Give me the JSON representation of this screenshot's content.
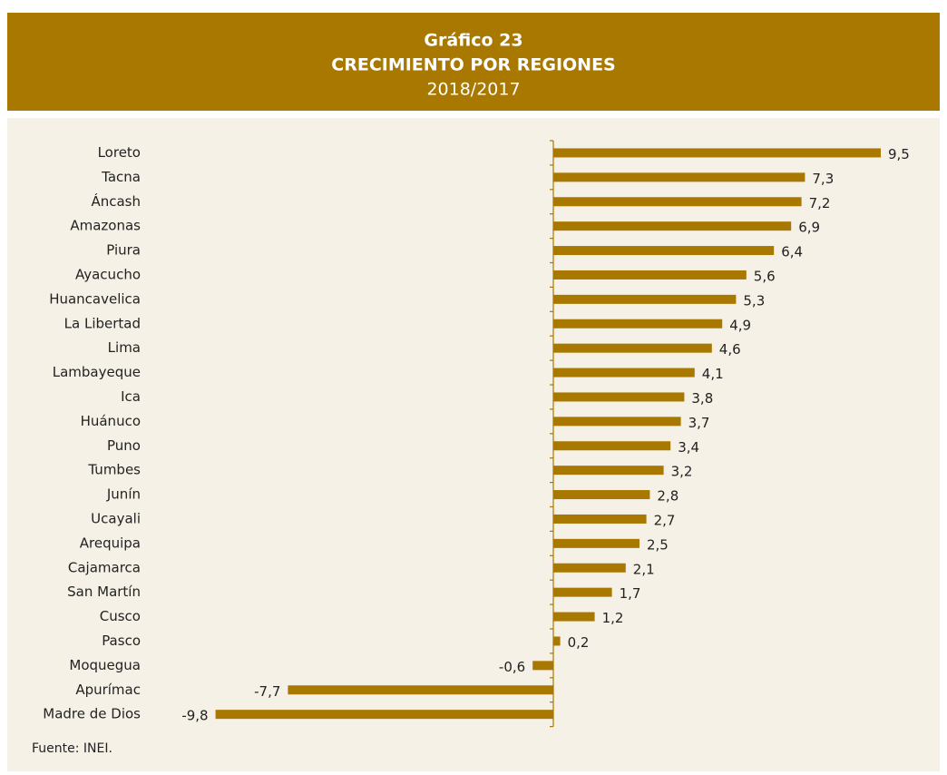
{
  "chart_data": {
    "type": "hbar",
    "title": "Gráfico 23",
    "subtitle": "CRECIMIENTO POR REGIONES",
    "period": "2018/2017",
    "source": "Fuente: INEI.",
    "color": "#a87800",
    "categories": [
      "Loreto",
      "Tacna",
      "Áncash",
      "Amazonas",
      "Piura",
      "Ayacucho",
      "Huancavelica",
      "La Libertad",
      "Lima",
      "Lambayeque",
      "Ica",
      "Huánuco",
      "Puno",
      "Tumbes",
      "Junín",
      "Ucayali",
      "Arequipa",
      "Cajamarca",
      "San Martín",
      "Cusco",
      "Pasco",
      "Moquegua",
      "Apurímac",
      "Madre de Dios"
    ],
    "values": [
      9.5,
      7.3,
      7.2,
      6.9,
      6.4,
      5.6,
      5.3,
      4.9,
      4.6,
      4.1,
      3.8,
      3.7,
      3.4,
      3.2,
      2.8,
      2.7,
      2.5,
      2.1,
      1.7,
      1.2,
      0.2,
      -0.6,
      -7.7,
      -9.8
    ],
    "value_labels": [
      "9,5",
      "7,3",
      "7,2",
      "6,9",
      "6,4",
      "5,6",
      "5,3",
      "4,9",
      "4,6",
      "4,1",
      "3,8",
      "3,7",
      "3,4",
      "3,2",
      "2,8",
      "2,7",
      "2,5",
      "2,1",
      "1,7",
      "1,2",
      "0,2",
      "-0,6",
      "-7,7",
      "-9,8"
    ],
    "xlim": [
      -10,
      10
    ]
  }
}
